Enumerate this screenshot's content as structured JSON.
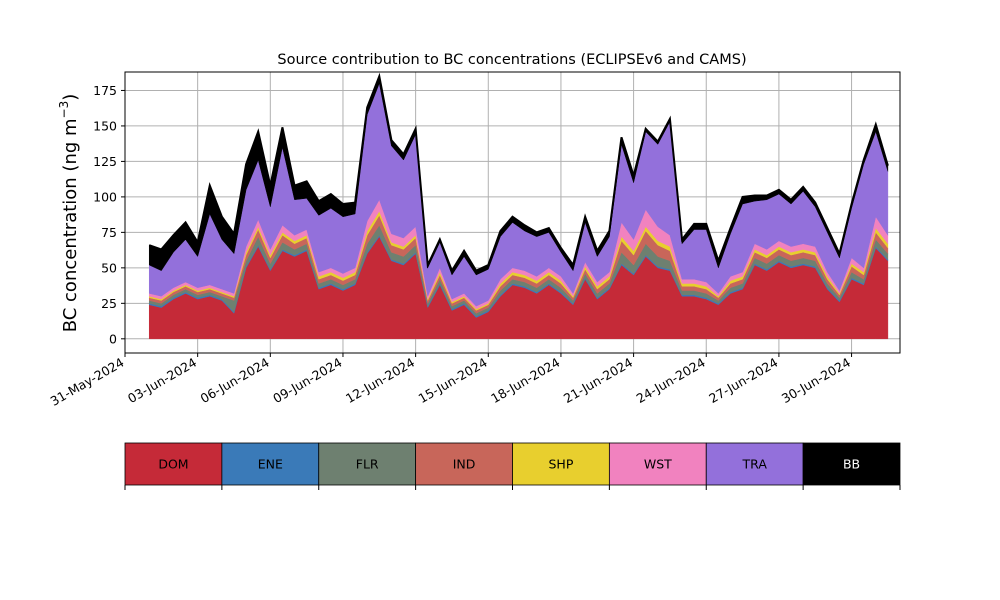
{
  "chart_data": {
    "type": "area",
    "stacked": true,
    "title": "Source contribution to BC concentrations (ECLIPSEv6 and CAMS)",
    "ylabel": "BC concentration (ng m",
    "ylabel_sup": "−3",
    "ylabel_close": ")",
    "xlabel": "",
    "ylim": [
      -10,
      188
    ],
    "xlim": [
      "2024-05-31",
      "2024-07-02"
    ],
    "yticks": [
      0,
      25,
      50,
      75,
      100,
      125,
      150,
      175
    ],
    "xticks": [
      "2024-05-31",
      "2024-06-03",
      "2024-06-06",
      "2024-06-09",
      "2024-06-12",
      "2024-06-15",
      "2024-06-18",
      "2024-06-21",
      "2024-06-24",
      "2024-06-27",
      "2024-06-30"
    ],
    "xtick_labels": [
      "31-May-2024",
      "03-Jun-2024",
      "06-Jun-2024",
      "09-Jun-2024",
      "12-Jun-2024",
      "15-Jun-2024",
      "18-Jun-2024",
      "21-Jun-2024",
      "24-Jun-2024",
      "27-Jun-2024",
      "30-Jun-2024"
    ],
    "grid": true,
    "legend_placement": "bottom",
    "x": [
      "2024-06-01",
      "2024-06-01T12:00",
      "2024-06-02",
      "2024-06-02T12:00",
      "2024-06-03",
      "2024-06-03T12:00",
      "2024-06-04",
      "2024-06-04T12:00",
      "2024-06-05",
      "2024-06-05T12:00",
      "2024-06-06",
      "2024-06-06T12:00",
      "2024-06-07",
      "2024-06-07T12:00",
      "2024-06-08",
      "2024-06-08T12:00",
      "2024-06-09",
      "2024-06-09T12:00",
      "2024-06-10",
      "2024-06-10T12:00",
      "2024-06-11",
      "2024-06-11T12:00",
      "2024-06-12",
      "2024-06-12T12:00",
      "2024-06-13",
      "2024-06-13T12:00",
      "2024-06-14",
      "2024-06-14T12:00",
      "2024-06-15",
      "2024-06-15T12:00",
      "2024-06-16",
      "2024-06-16T12:00",
      "2024-06-17",
      "2024-06-17T12:00",
      "2024-06-18",
      "2024-06-18T12:00",
      "2024-06-19",
      "2024-06-19T12:00",
      "2024-06-20",
      "2024-06-20T12:00",
      "2024-06-21",
      "2024-06-21T12:00",
      "2024-06-22",
      "2024-06-22T12:00",
      "2024-06-23",
      "2024-06-23T12:00",
      "2024-06-24",
      "2024-06-24T12:00",
      "2024-06-25",
      "2024-06-25T12:00",
      "2024-06-26",
      "2024-06-26T12:00",
      "2024-06-27",
      "2024-06-27T12:00",
      "2024-06-28",
      "2024-06-28T12:00",
      "2024-06-29",
      "2024-06-29T12:00",
      "2024-06-30",
      "2024-06-30T12:00",
      "2024-07-01",
      "2024-07-01T12:00"
    ],
    "series": [
      {
        "name": "DOM",
        "color": "#c52a38",
        "values": [
          24,
          22,
          28,
          32,
          28,
          30,
          27,
          18,
          50,
          65,
          48,
          62,
          58,
          62,
          35,
          38,
          34,
          38,
          60,
          72,
          55,
          52,
          60,
          22,
          38,
          20,
          24,
          15,
          19,
          30,
          38,
          36,
          32,
          38,
          32,
          24,
          42,
          28,
          35,
          52,
          45,
          58,
          50,
          48,
          30,
          30,
          28,
          24,
          32,
          35,
          52,
          48,
          54,
          50,
          52,
          50,
          35,
          26,
          42,
          38,
          64,
          55
        ]
      },
      {
        "name": "ENE",
        "color": "#3a7ab8",
        "values": [
          1,
          1,
          1,
          1,
          1,
          1,
          1,
          1,
          1,
          1,
          1,
          1,
          1,
          1,
          1,
          1,
          1,
          1,
          1,
          1,
          1,
          1,
          1,
          1,
          1,
          1,
          1,
          1,
          1,
          1,
          1,
          1,
          1,
          1,
          1,
          1,
          1,
          1,
          1,
          1,
          1,
          1,
          1,
          1,
          1,
          1,
          1,
          1,
          1,
          1,
          1,
          1,
          1,
          1,
          1,
          1,
          1,
          1,
          1,
          1,
          1,
          1
        ]
      },
      {
        "name": "FLR",
        "color": "#6e8070",
        "values": [
          2,
          2,
          2,
          2,
          2,
          2,
          2,
          8,
          4,
          6,
          4,
          5,
          4,
          4,
          3,
          3,
          3,
          3,
          6,
          7,
          5,
          5,
          5,
          2,
          3,
          2,
          2,
          2,
          2,
          3,
          3,
          3,
          3,
          3,
          3,
          2,
          3,
          3,
          3,
          8,
          6,
          8,
          7,
          6,
          3,
          3,
          3,
          2,
          3,
          3,
          4,
          4,
          4,
          4,
          4,
          4,
          3,
          2,
          4,
          3,
          5,
          4
        ]
      },
      {
        "name": "IND",
        "color": "#c8665a",
        "values": [
          2,
          2,
          2,
          2,
          2,
          2,
          2,
          2,
          4,
          5,
          4,
          5,
          4,
          4,
          3,
          3,
          3,
          3,
          6,
          7,
          5,
          5,
          5,
          2,
          3,
          2,
          2,
          2,
          2,
          3,
          3,
          3,
          3,
          3,
          3,
          2,
          3,
          3,
          3,
          8,
          7,
          9,
          8,
          7,
          3,
          3,
          3,
          2,
          3,
          3,
          4,
          4,
          4,
          4,
          4,
          4,
          3,
          2,
          4,
          3,
          5,
          4
        ]
      },
      {
        "name": "SHP",
        "color": "#e8cf2e",
        "values": [
          1,
          1,
          1,
          1,
          1,
          1,
          1,
          1,
          2,
          2,
          2,
          2,
          2,
          2,
          2,
          2,
          2,
          2,
          3,
          3,
          2,
          2,
          2,
          1,
          2,
          1,
          1,
          1,
          1,
          2,
          2,
          2,
          2,
          2,
          2,
          1,
          2,
          2,
          2,
          3,
          3,
          3,
          3,
          3,
          2,
          2,
          2,
          1,
          2,
          2,
          2,
          2,
          2,
          2,
          2,
          2,
          2,
          1,
          2,
          2,
          3,
          3
        ]
      },
      {
        "name": "WST",
        "color": "#f182bf",
        "values": [
          2,
          2,
          2,
          2,
          2,
          2,
          2,
          2,
          4,
          5,
          4,
          5,
          4,
          4,
          3,
          3,
          3,
          3,
          7,
          8,
          6,
          6,
          6,
          2,
          3,
          2,
          2,
          2,
          2,
          3,
          3,
          3,
          3,
          3,
          3,
          2,
          3,
          3,
          3,
          10,
          8,
          12,
          10,
          8,
          3,
          3,
          3,
          2,
          3,
          3,
          4,
          4,
          4,
          4,
          4,
          4,
          3,
          2,
          4,
          3,
          8,
          6
        ]
      },
      {
        "name": "TRA",
        "color": "#9370db",
        "values": [
          20,
          18,
          25,
          30,
          22,
          50,
          35,
          28,
          40,
          42,
          30,
          55,
          25,
          22,
          40,
          42,
          40,
          38,
          75,
          82,
          62,
          55,
          65,
          20,
          18,
          17,
          26,
          22,
          22,
          30,
          32,
          28,
          28,
          25,
          17,
          16,
          28,
          18,
          25,
          55,
          40,
          55,
          58,
          80,
          25,
          35,
          37,
          18,
          30,
          48,
          30,
          35,
          33,
          30,
          37,
          28,
          28,
          23,
          35,
          73,
          60,
          45
        ]
      },
      {
        "name": "BB",
        "color": "#000000",
        "values": [
          14,
          15,
          12,
          12,
          10,
          20,
          16,
          14,
          18,
          20,
          15,
          14,
          10,
          12,
          10,
          10,
          9,
          8,
          5,
          5,
          4,
          4,
          4,
          2,
          2,
          3,
          4,
          3,
          3,
          4,
          4,
          4,
          3,
          3,
          3,
          4,
          4,
          4,
          4,
          5,
          5,
          2,
          2,
          2,
          3,
          4,
          4,
          5,
          4,
          5,
          4,
          3,
          3,
          3,
          3,
          3,
          3,
          3,
          3,
          3,
          5,
          4
        ]
      }
    ]
  }
}
